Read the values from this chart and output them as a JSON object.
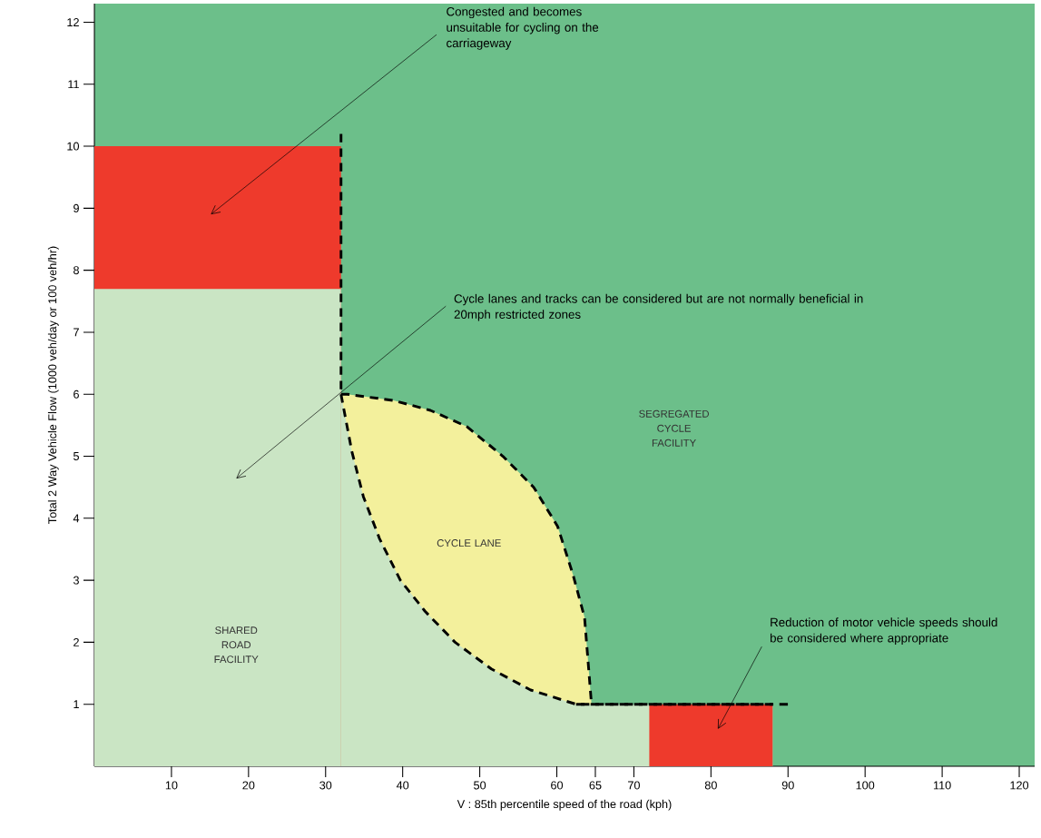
{
  "chart_data": {
    "type": "area",
    "xlabel": "V : 85th percentile speed of the road (kph)",
    "ylabel": "Total 2 Way Vehicle Flow (1000 veh/day or 100 veh/hr)",
    "xlim": [
      0,
      122
    ],
    "ylim": [
      0,
      12.3
    ],
    "xticks": [
      10,
      20,
      30,
      40,
      50,
      60,
      65,
      70,
      80,
      90,
      100,
      110,
      120
    ],
    "yticks": [
      1,
      2,
      3,
      4,
      5,
      6,
      7,
      8,
      9,
      10,
      11,
      12
    ],
    "grid": false,
    "series": [
      {
        "color": "#ee3a2c",
        "x": [
          0,
          32
        ],
        "values": [
          10,
          10
        ]
      },
      {
        "color": "#f3f09c",
        "line_style": "dashed",
        "x": [
          32,
          32.8,
          38.8,
          43.6,
          48.3,
          53,
          57,
          60.1,
          62.1,
          63.6,
          64.5
        ],
        "values": [
          6,
          6.0,
          5.9,
          5.74,
          5.48,
          5.0,
          4.5,
          3.87,
          3.09,
          2.4,
          1.0
        ]
      },
      {
        "color": "#cae5c4",
        "x": [
          0,
          32
        ],
        "values": [
          7.7,
          7.7
        ]
      },
      {
        "color": "#cae5c4",
        "line_style": "dashed",
        "x": [
          32,
          33.4,
          34.9,
          37,
          39.7,
          42.9,
          46.8,
          51.5,
          56.6,
          62.5,
          88
        ],
        "values": [
          6,
          5.08,
          4.35,
          3.67,
          3.0,
          2.5,
          2.0,
          1.57,
          1.23,
          1,
          1
        ]
      },
      {
        "color": "#ee3a2c",
        "x": [
          72,
          88
        ],
        "values": [
          1,
          1
        ]
      },
      {
        "type": "line",
        "color": "#000000",
        "line_style": "dashed",
        "x": [
          32,
          32
        ],
        "values": [
          10.2,
          6
        ]
      },
      {
        "type": "line",
        "color": "#000000",
        "line_style": "dashed",
        "x": [
          62.5,
          90
        ],
        "values": [
          1,
          1
        ]
      }
    ],
    "annotations": [
      "Congested and becomes unsuitable for cycling on the carriageway",
      "Cycle lanes and tracks can be considered but are not normally beneficial in 20mph restricted zones",
      "Reduction of motor vehicle speeds should be considered where appropriate",
      "SHARED ROAD FACILITY",
      "CYCLE LANE",
      "SEGREGATED CYCLE FACILITY"
    ]
  }
}
